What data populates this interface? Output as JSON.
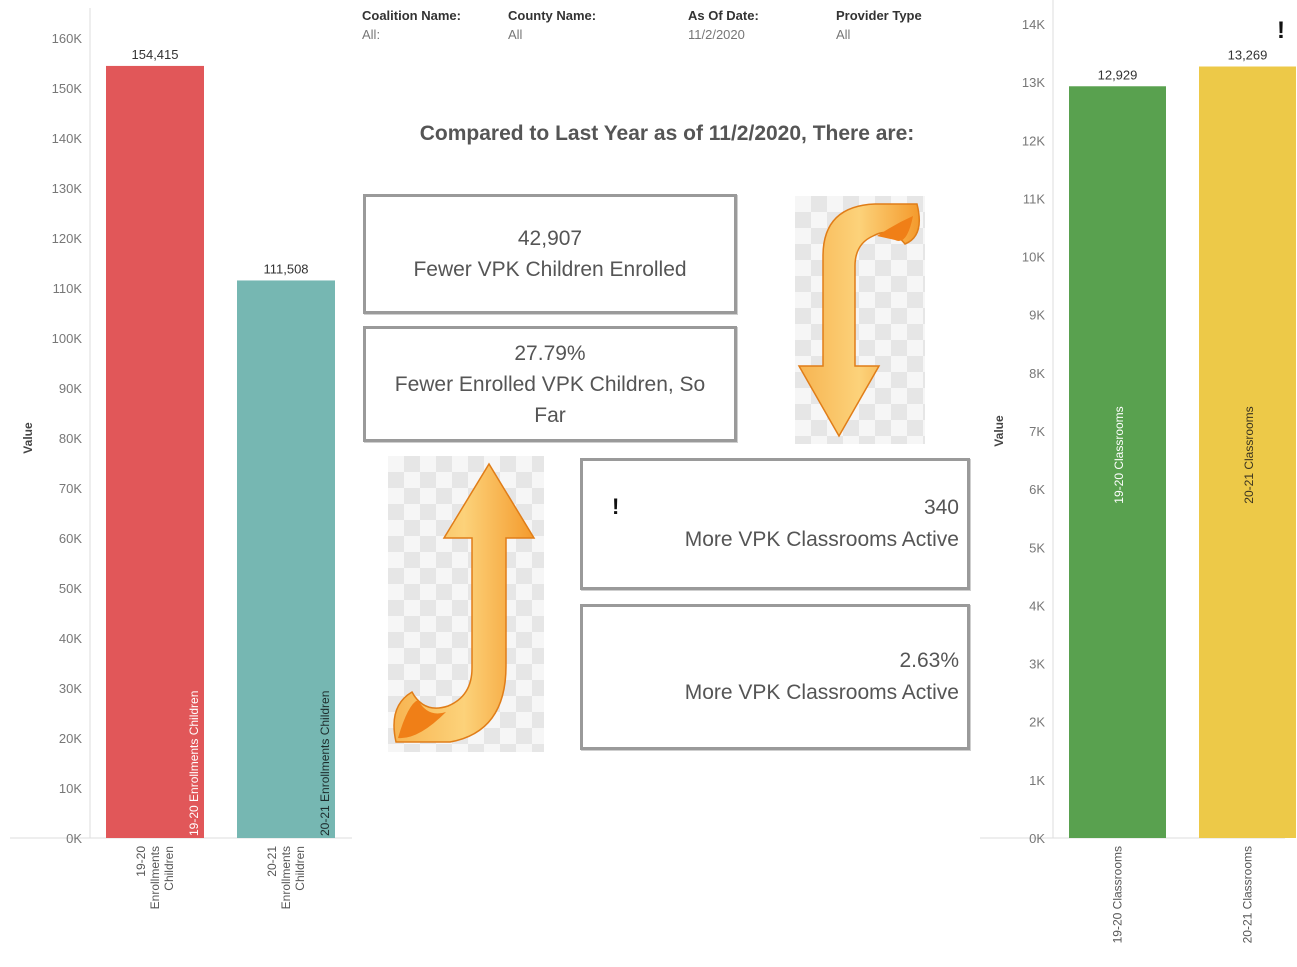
{
  "filters": [
    {
      "label": "Coalition Name:",
      "value": "All:"
    },
    {
      "label": "County Name:",
      "value": "All"
    },
    {
      "label": "As Of Date:",
      "value": "11/2/2020"
    },
    {
      "label": "Provider Type",
      "value": "All"
    }
  ],
  "headline": "Compared to Last Year as of 11/2/2020, There are:",
  "cards": {
    "children_count": {
      "value": "42,907",
      "text": "Fewer VPK Children Enrolled"
    },
    "children_pct": {
      "value": "27.79%",
      "text": "Fewer Enrolled VPK Children, So Far"
    },
    "classrooms_count": {
      "value": "340",
      "text": "More VPK Classrooms Active"
    },
    "classrooms_pct": {
      "value": "2.63%",
      "text": "More VPK Classrooms Active"
    }
  },
  "warning_mark": "!",
  "icons": [
    "arrow-down-icon",
    "arrow-up-icon",
    "warning-icon"
  ],
  "chart_data": [
    {
      "type": "bar",
      "ylabel": "Value",
      "ylim": [
        0,
        160000
      ],
      "yticks": [
        0,
        10000,
        20000,
        30000,
        40000,
        50000,
        60000,
        70000,
        80000,
        90000,
        100000,
        110000,
        120000,
        130000,
        140000,
        150000,
        160000
      ],
      "ytick_labels": [
        "0K",
        "10K",
        "20K",
        "30K",
        "40K",
        "50K",
        "60K",
        "70K",
        "80K",
        "90K",
        "100K",
        "110K",
        "120K",
        "130K",
        "140K",
        "150K",
        "160K"
      ],
      "categories": [
        "19-20 Enrollments Children",
        "20-21 Enrollments Children"
      ],
      "category_lines": [
        [
          "19-20",
          "Enrollments",
          "Children"
        ],
        [
          "20-21",
          "Enrollments",
          "Children"
        ]
      ],
      "values": [
        154415,
        111508
      ],
      "data_labels": [
        "154,415",
        "111,508"
      ],
      "colors": [
        "#e15759",
        "#76b7b2"
      ],
      "grid": false
    },
    {
      "type": "bar",
      "ylabel": "Value",
      "ylim": [
        0,
        14000
      ],
      "yticks": [
        0,
        1000,
        2000,
        3000,
        4000,
        5000,
        6000,
        7000,
        8000,
        9000,
        10000,
        11000,
        12000,
        13000,
        14000
      ],
      "ytick_labels": [
        "0K",
        "1K",
        "2K",
        "3K",
        "4K",
        "5K",
        "6K",
        "7K",
        "8K",
        "9K",
        "10K",
        "11K",
        "12K",
        "13K",
        "14K"
      ],
      "categories": [
        "19-20 Classrooms",
        "20-21 Classrooms"
      ],
      "category_lines": [
        [
          "19-20 Classrooms"
        ],
        [
          "20-21 Classrooms"
        ]
      ],
      "values": [
        12929,
        13269
      ],
      "data_labels": [
        "12,929",
        "13,269"
      ],
      "colors": [
        "#59a14f",
        "#edc948"
      ],
      "grid": false
    }
  ]
}
